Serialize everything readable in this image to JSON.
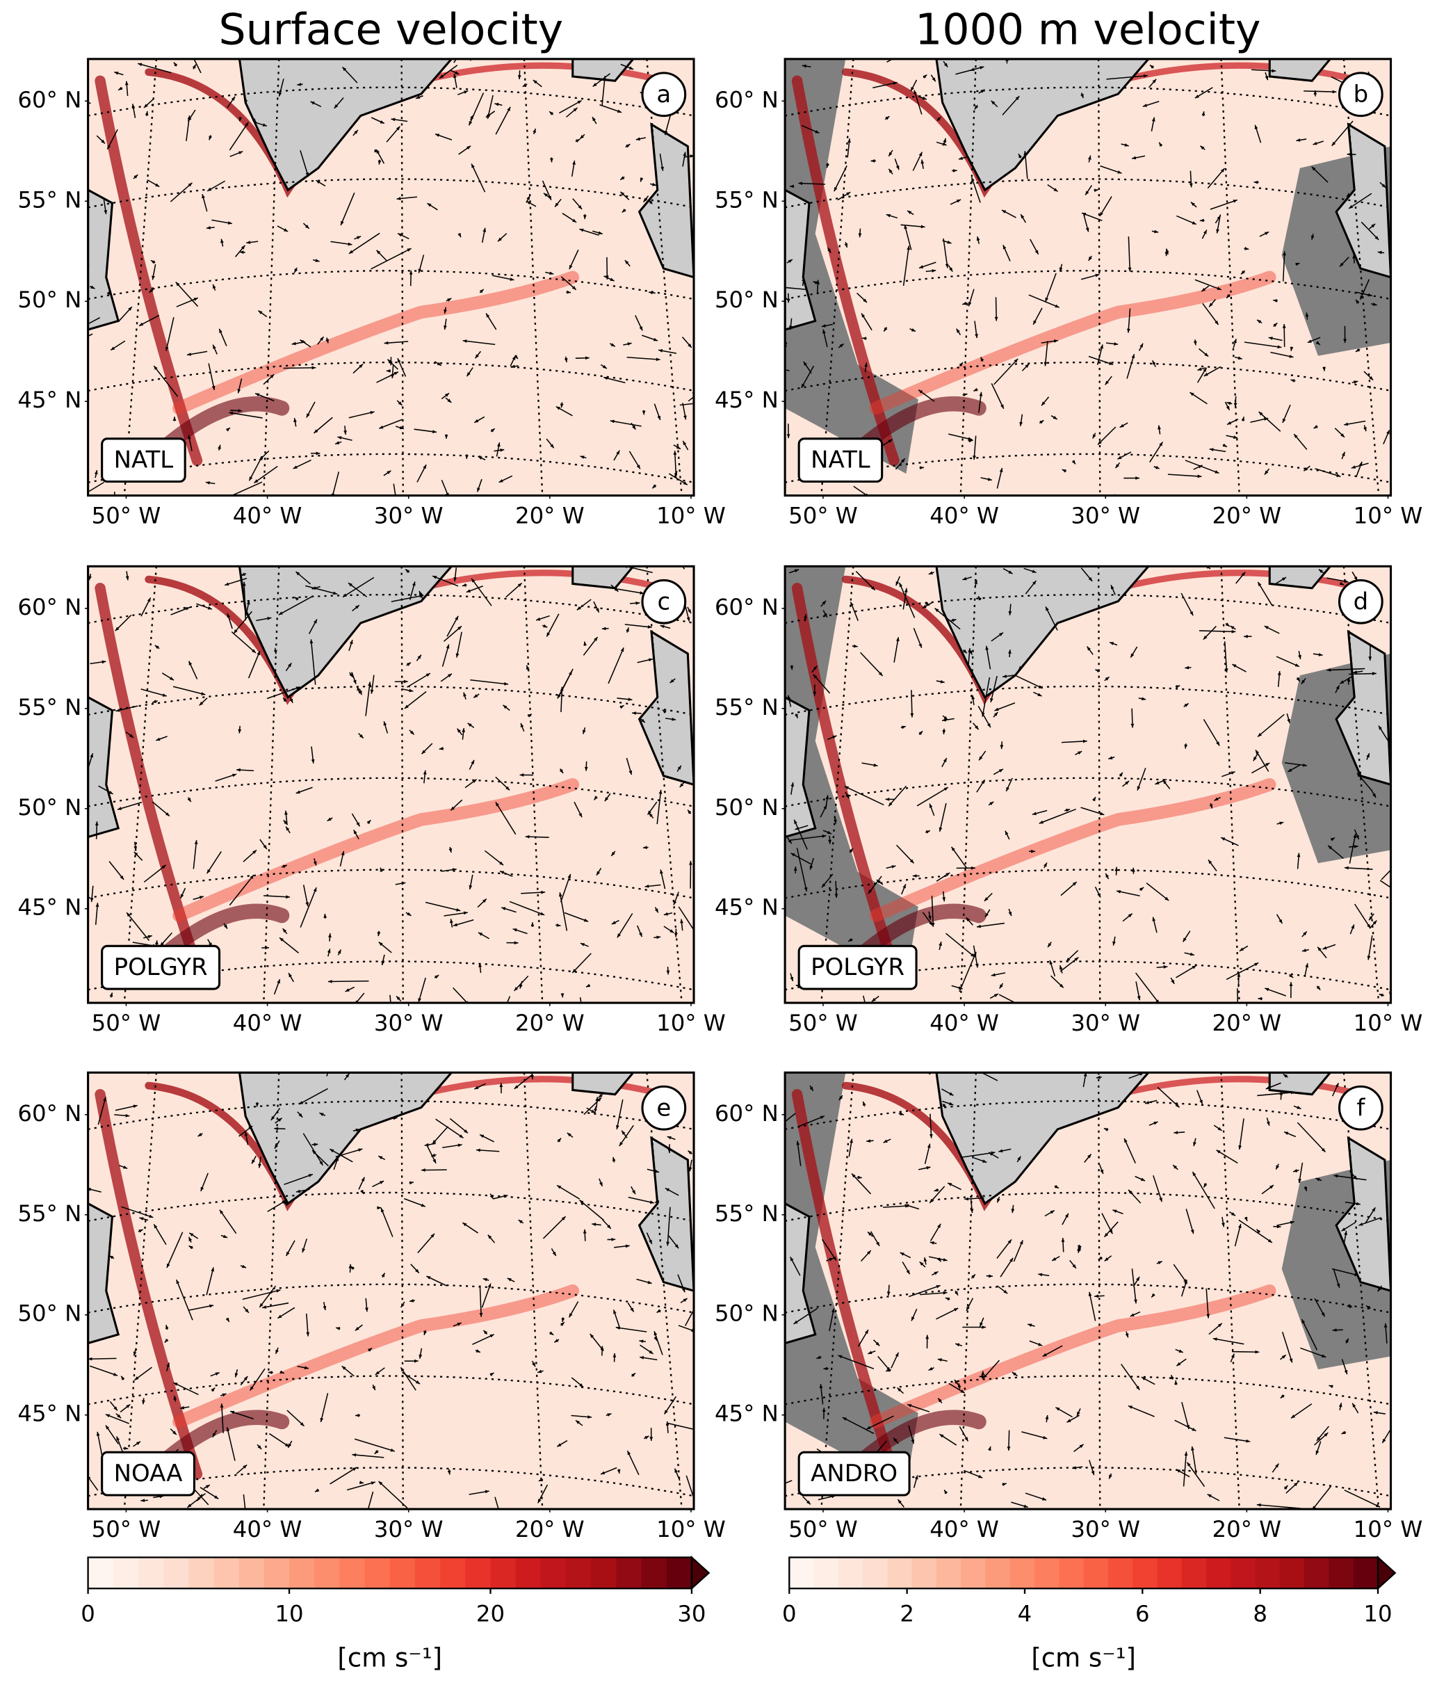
{
  "latlim": [
    40.3,
    62.1
  ],
  "lonlim": [
    -52.7,
    -9.8
  ],
  "lat_ticks": [
    {
      "value": 60,
      "label": "60° N"
    },
    {
      "value": 55,
      "label": "55° N"
    },
    {
      "value": 50,
      "label": "50° N"
    },
    {
      "value": 45,
      "label": "45° N"
    }
  ],
  "lon_ticks": [
    {
      "value": -50,
      "label": "50° W"
    },
    {
      "value": -40,
      "label": "40° W"
    },
    {
      "value": -30,
      "label": "30° W"
    },
    {
      "value": -20,
      "label": "20° W"
    },
    {
      "value": -10,
      "label": "10° W"
    }
  ],
  "columns": [
    {
      "title": "Surface velocity",
      "panels": [
        {
          "letter": "a",
          "label": "NATL"
        },
        {
          "letter": "c",
          "label": "POLGYR"
        },
        {
          "letter": "e",
          "label": "NOAA"
        }
      ],
      "colorbar": {
        "lim": [
          0,
          30
        ],
        "ticks": [
          0,
          10,
          20,
          30
        ],
        "label": "[cm s⁻¹]"
      }
    },
    {
      "title": "1000 m velocity",
      "panels": [
        {
          "letter": "b",
          "label": "NATL"
        },
        {
          "letter": "d",
          "label": "POLGYR"
        },
        {
          "letter": "f",
          "label": "ANDRO"
        }
      ],
      "colorbar": {
        "lim": [
          0,
          10
        ],
        "ticks": [
          0,
          2,
          4,
          6,
          8,
          10
        ],
        "label": "[cm s⁻¹]"
      }
    }
  ]
}
